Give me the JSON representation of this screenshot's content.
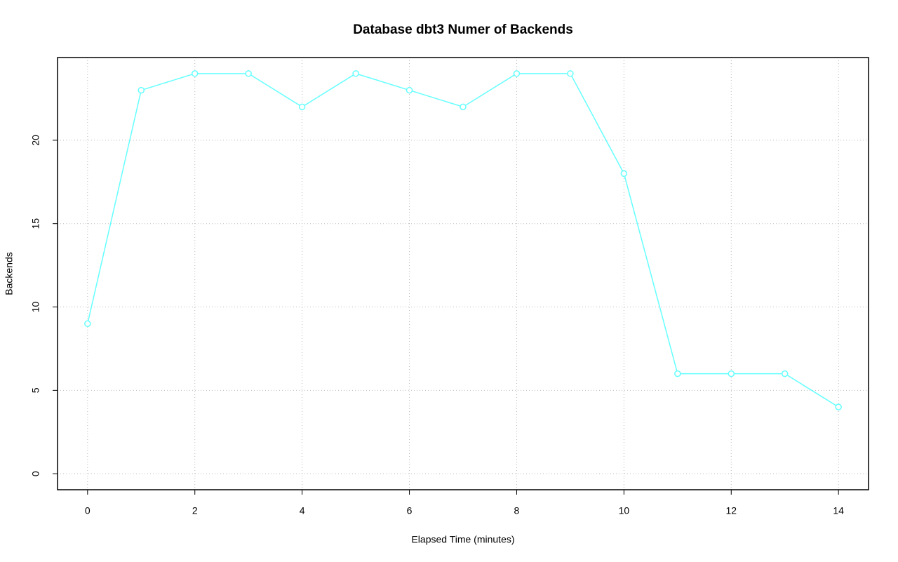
{
  "chart_data": {
    "type": "line",
    "title": "Database dbt3 Numer of Backends",
    "x_label": "Elapsed Time (minutes)",
    "y_label": "Backends",
    "x": [
      0,
      1,
      2,
      3,
      4,
      5,
      6,
      7,
      8,
      9,
      10,
      11,
      12,
      13,
      14
    ],
    "series": [
      {
        "name": "Backends",
        "color": "#66ffff",
        "values": [
          9,
          23,
          24,
          24,
          22,
          24,
          23,
          22,
          24,
          24,
          18,
          6,
          6,
          6,
          4
        ]
      }
    ],
    "xlim": [
      -0.56,
      14.56
    ],
    "ylim": [
      -0.96,
      24.96
    ],
    "xticks": [
      0,
      2,
      4,
      6,
      8,
      10,
      12,
      14
    ],
    "yticks": [
      0,
      5,
      10,
      15,
      20
    ],
    "grid": true
  }
}
